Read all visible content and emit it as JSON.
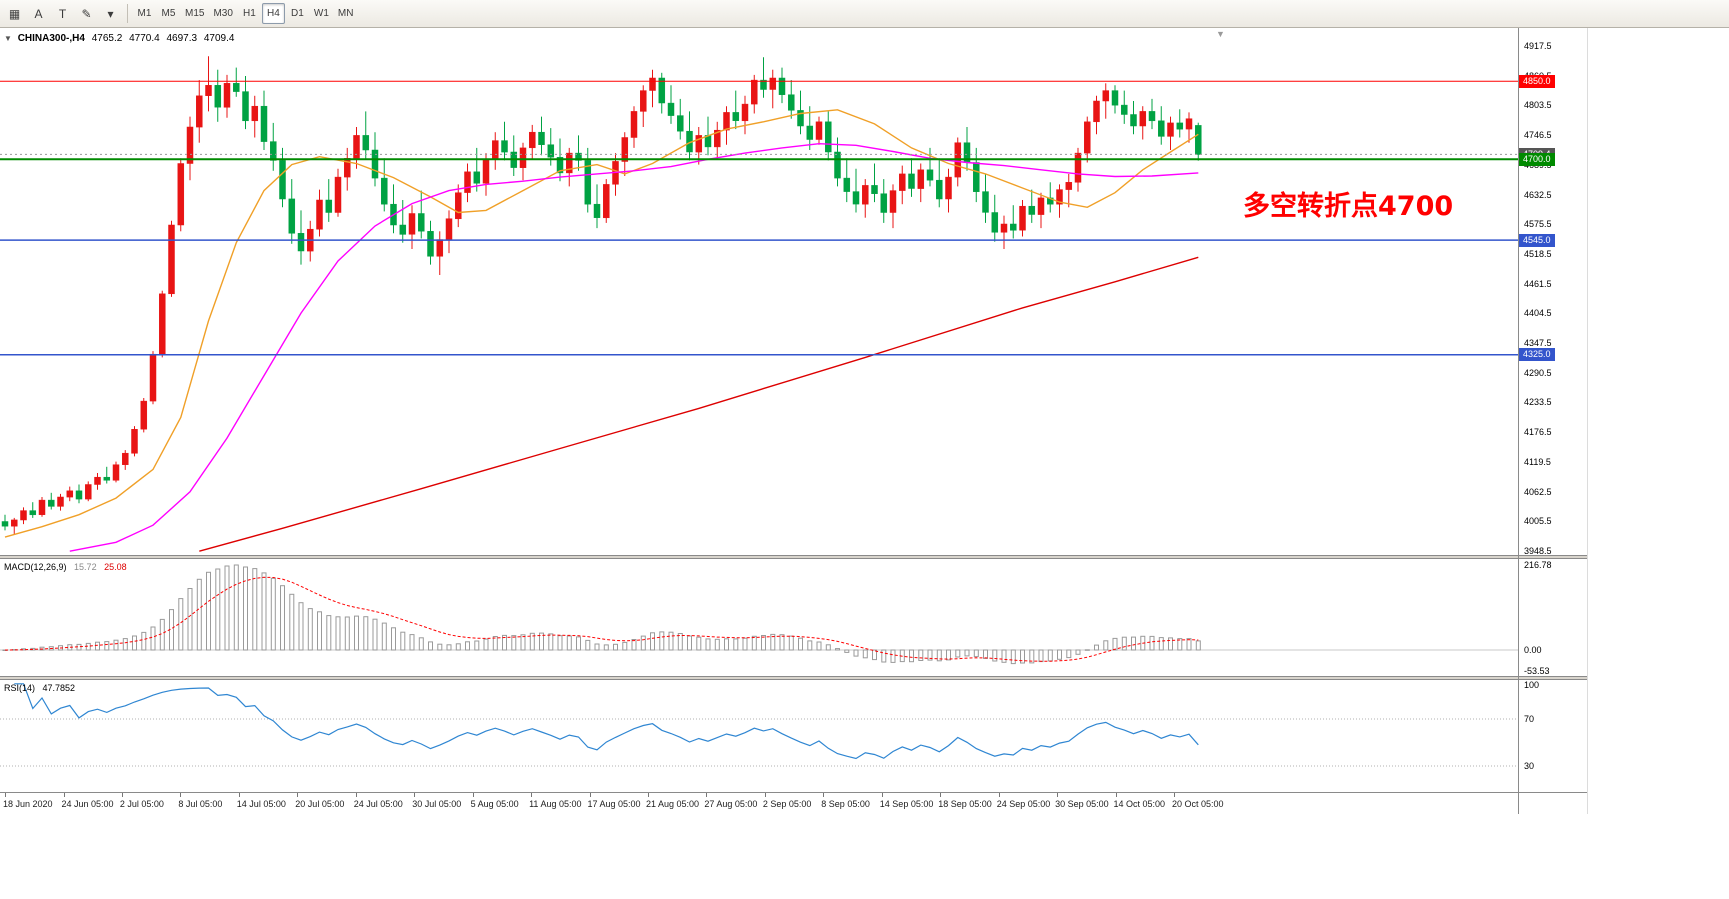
{
  "toolbar": {
    "icons": [
      {
        "name": "charts-grid-icon",
        "glyph": "▦"
      },
      {
        "name": "text-tool-icon",
        "glyph": "A"
      },
      {
        "name": "label-tool-icon",
        "glyph": "T"
      },
      {
        "name": "drawing-tools-icon",
        "glyph": "✎"
      },
      {
        "name": "chevron-down-icon",
        "glyph": "▾"
      }
    ],
    "timeframes": [
      "M1",
      "M5",
      "M15",
      "M30",
      "H1",
      "H4",
      "D1",
      "W1",
      "MN"
    ],
    "active_timeframe": "H4"
  },
  "chart": {
    "header": {
      "caret": "▼",
      "symbol_period": "CHINA300-,H4",
      "open": "4765.2",
      "high": "4770.4",
      "low": "4697.3",
      "close": "4709.4"
    },
    "annotation": {
      "text": "多空转折点4700",
      "color": "#ff0000"
    },
    "shift_marker_glyph": "▼",
    "levels": [
      {
        "price": 4850.0,
        "label": "4850.0",
        "color": "#ff0000",
        "width": 1
      },
      {
        "price": 4700.0,
        "label": "4700.0",
        "color": "#008a00",
        "width": 2
      },
      {
        "price": 4545.0,
        "label": "4545.0",
        "color": "#3355cc",
        "width": 1.5
      },
      {
        "price": 4325.0,
        "label": "4325.0",
        "color": "#3355cc",
        "width": 1.5
      }
    ],
    "current_price": {
      "value": 4709.4,
      "label": "4709.4",
      "tag_color": "#555555"
    },
    "y_axis": {
      "labels": [
        "4917.5",
        "4860.5",
        "4803.5",
        "4746.5",
        "4689.5",
        "4632.5",
        "4575.5",
        "4518.5",
        "4461.5",
        "4404.5",
        "4347.5",
        "4290.5",
        "4233.5",
        "4176.5",
        "4119.5",
        "4062.5",
        "4005.5",
        "3948.5"
      ]
    },
    "x_axis": {
      "labels": [
        "18 Jun 2020",
        "24 Jun 05:00",
        "2 Jul 05:00",
        "8 Jul 05:00",
        "14 Jul 05:00",
        "20 Jul 05:00",
        "24 Jul 05:00",
        "30 Jul 05:00",
        "5 Aug 05:00",
        "11 Aug 05:00",
        "17 Aug 05:00",
        "21 Aug 05:00",
        "27 Aug 05:00",
        "2 Sep 05:00",
        "8 Sep 05:00",
        "14 Sep 05:00",
        "18 Sep 05:00",
        "24 Sep 05:00",
        "30 Sep 05:00",
        "14 Oct 05:00",
        "20 Oct 05:00"
      ]
    }
  },
  "indicators": {
    "macd": {
      "name_label": "MACD(12,26,9)",
      "value": "15.72",
      "signal": "25.08",
      "axis_labels": [
        "216.78",
        "0.00",
        "-53.53"
      ]
    },
    "rsi": {
      "name_label": "RSI(14)",
      "value": "47.7852",
      "axis_labels": [
        "100",
        "70",
        "30"
      ],
      "levels": [
        70,
        30
      ]
    }
  },
  "colors": {
    "bull": "#e81414",
    "bear": "#00a243",
    "macd_hist": "#9a9a9a",
    "macd_signal": "#ff0000",
    "rsi_line": "#2f86d2",
    "level_dash": "#b0b0b0"
  },
  "chart_data": {
    "type": "candlestick",
    "symbol": "CHINA300-",
    "timeframe": "H4",
    "title": "CHINA300- H4 candlestick chart with MACD(12,26,9) and RSI(14)",
    "ylim": [
      3948.5,
      4917.5
    ],
    "last_ohlc": {
      "open": 4765.2,
      "high": 4770.4,
      "low": 4697.3,
      "close": 4709.4
    },
    "horizontal_levels": [
      4850.0,
      4700.0,
      4545.0,
      4325.0
    ],
    "candles": [
      [
        4005,
        4018,
        3988,
        3996
      ],
      [
        3996,
        4012,
        3980,
        4008
      ],
      [
        4008,
        4032,
        4000,
        4026
      ],
      [
        4026,
        4042,
        4012,
        4018
      ],
      [
        4018,
        4052,
        4014,
        4046
      ],
      [
        4046,
        4060,
        4028,
        4034
      ],
      [
        4034,
        4058,
        4026,
        4052
      ],
      [
        4052,
        4072,
        4044,
        4064
      ],
      [
        4064,
        4076,
        4040,
        4048
      ],
      [
        4048,
        4082,
        4044,
        4076
      ],
      [
        4076,
        4098,
        4066,
        4090
      ],
      [
        4090,
        4110,
        4078,
        4084
      ],
      [
        4084,
        4120,
        4080,
        4114
      ],
      [
        4114,
        4142,
        4104,
        4136
      ],
      [
        4136,
        4188,
        4130,
        4182
      ],
      [
        4182,
        4242,
        4176,
        4236
      ],
      [
        4236,
        4332,
        4230,
        4326
      ],
      [
        4326,
        4448,
        4320,
        4442
      ],
      [
        4442,
        4582,
        4436,
        4574
      ],
      [
        4574,
        4702,
        4562,
        4692
      ],
      [
        4692,
        4782,
        4660,
        4762
      ],
      [
        4762,
        4852,
        4732,
        4822
      ],
      [
        4822,
        4898,
        4792,
        4842
      ],
      [
        4842,
        4872,
        4772,
        4800
      ],
      [
        4800,
        4862,
        4780,
        4846
      ],
      [
        4846,
        4876,
        4820,
        4830
      ],
      [
        4830,
        4860,
        4758,
        4774
      ],
      [
        4774,
        4822,
        4742,
        4802
      ],
      [
        4802,
        4832,
        4718,
        4734
      ],
      [
        4734,
        4770,
        4678,
        4698
      ],
      [
        4698,
        4722,
        4608,
        4624
      ],
      [
        4624,
        4662,
        4538,
        4558
      ],
      [
        4558,
        4602,
        4498,
        4524
      ],
      [
        4524,
        4582,
        4504,
        4566
      ],
      [
        4566,
        4642,
        4552,
        4622
      ],
      [
        4622,
        4662,
        4580,
        4598
      ],
      [
        4598,
        4682,
        4590,
        4666
      ],
      [
        4666,
        4722,
        4640,
        4702
      ],
      [
        4702,
        4762,
        4682,
        4746
      ],
      [
        4746,
        4792,
        4700,
        4718
      ],
      [
        4718,
        4752,
        4648,
        4664
      ],
      [
        4664,
        4702,
        4600,
        4614
      ],
      [
        4614,
        4652,
        4558,
        4574
      ],
      [
        4574,
        4622,
        4540,
        4556
      ],
      [
        4556,
        4612,
        4528,
        4596
      ],
      [
        4596,
        4640,
        4548,
        4562
      ],
      [
        4562,
        4582,
        4498,
        4514
      ],
      [
        4514,
        4562,
        4478,
        4546
      ],
      [
        4546,
        4602,
        4520,
        4586
      ],
      [
        4586,
        4652,
        4570,
        4636
      ],
      [
        4636,
        4692,
        4618,
        4676
      ],
      [
        4676,
        4722,
        4638,
        4654
      ],
      [
        4654,
        4712,
        4630,
        4700
      ],
      [
        4700,
        4752,
        4680,
        4736
      ],
      [
        4736,
        4772,
        4698,
        4714
      ],
      [
        4714,
        4746,
        4668,
        4684
      ],
      [
        4684,
        4732,
        4660,
        4722
      ],
      [
        4722,
        4766,
        4700,
        4752
      ],
      [
        4752,
        4782,
        4708,
        4728
      ],
      [
        4728,
        4760,
        4688,
        4704
      ],
      [
        4704,
        4740,
        4658,
        4674
      ],
      [
        4674,
        4722,
        4648,
        4712
      ],
      [
        4712,
        4746,
        4678,
        4698
      ],
      [
        4698,
        4722,
        4598,
        4614
      ],
      [
        4614,
        4652,
        4568,
        4588
      ],
      [
        4588,
        4662,
        4578,
        4652
      ],
      [
        4652,
        4712,
        4630,
        4696
      ],
      [
        4696,
        4752,
        4668,
        4742
      ],
      [
        4742,
        4802,
        4722,
        4792
      ],
      [
        4792,
        4842,
        4762,
        4832
      ],
      [
        4832,
        4872,
        4800,
        4856
      ],
      [
        4856,
        4866,
        4788,
        4808
      ],
      [
        4808,
        4842,
        4768,
        4784
      ],
      [
        4784,
        4816,
        4738,
        4754
      ],
      [
        4754,
        4792,
        4698,
        4714
      ],
      [
        4714,
        4762,
        4690,
        4746
      ],
      [
        4746,
        4782,
        4708,
        4724
      ],
      [
        4724,
        4772,
        4700,
        4756
      ],
      [
        4756,
        4802,
        4728,
        4790
      ],
      [
        4790,
        4832,
        4758,
        4774
      ],
      [
        4774,
        4822,
        4748,
        4806
      ],
      [
        4806,
        4862,
        4788,
        4852
      ],
      [
        4852,
        4896,
        4818,
        4834
      ],
      [
        4834,
        4872,
        4798,
        4856
      ],
      [
        4856,
        4876,
        4808,
        4824
      ],
      [
        4824,
        4852,
        4778,
        4794
      ],
      [
        4794,
        4832,
        4748,
        4764
      ],
      [
        4764,
        4802,
        4718,
        4738
      ],
      [
        4738,
        4782,
        4728,
        4772
      ],
      [
        4772,
        4792,
        4698,
        4714
      ],
      [
        4714,
        4742,
        4648,
        4664
      ],
      [
        4664,
        4702,
        4618,
        4638
      ],
      [
        4638,
        4682,
        4598,
        4614
      ],
      [
        4614,
        4662,
        4588,
        4650
      ],
      [
        4650,
        4692,
        4618,
        4634
      ],
      [
        4634,
        4662,
        4578,
        4598
      ],
      [
        4598,
        4652,
        4568,
        4640
      ],
      [
        4640,
        4688,
        4614,
        4672
      ],
      [
        4672,
        4702,
        4628,
        4644
      ],
      [
        4644,
        4692,
        4618,
        4680
      ],
      [
        4680,
        4722,
        4648,
        4660
      ],
      [
        4660,
        4702,
        4608,
        4624
      ],
      [
        4624,
        4682,
        4598,
        4666
      ],
      [
        4666,
        4742,
        4648,
        4732
      ],
      [
        4732,
        4762,
        4678,
        4694
      ],
      [
        4694,
        4722,
        4618,
        4638
      ],
      [
        4638,
        4672,
        4578,
        4598
      ],
      [
        4598,
        4632,
        4542,
        4560
      ],
      [
        4560,
        4592,
        4528,
        4576
      ],
      [
        4576,
        4612,
        4548,
        4564
      ],
      [
        4564,
        4622,
        4552,
        4610
      ],
      [
        4610,
        4642,
        4578,
        4594
      ],
      [
        4594,
        4636,
        4568,
        4626
      ],
      [
        4626,
        4656,
        4598,
        4614
      ],
      [
        4614,
        4652,
        4588,
        4642
      ],
      [
        4642,
        4672,
        4608,
        4656
      ],
      [
        4656,
        4722,
        4638,
        4712
      ],
      [
        4712,
        4782,
        4694,
        4772
      ],
      [
        4772,
        4822,
        4748,
        4812
      ],
      [
        4812,
        4846,
        4778,
        4832
      ],
      [
        4832,
        4842,
        4788,
        4804
      ],
      [
        4804,
        4832,
        4768,
        4786
      ],
      [
        4786,
        4812,
        4748,
        4764
      ],
      [
        4764,
        4802,
        4738,
        4792
      ],
      [
        4792,
        4816,
        4758,
        4774
      ],
      [
        4774,
        4802,
        4728,
        4744
      ],
      [
        4744,
        4782,
        4718,
        4770
      ],
      [
        4770,
        4796,
        4742,
        4758
      ],
      [
        4758,
        4790,
        4732,
        4778
      ],
      [
        4765.2,
        4770.4,
        4697.3,
        4709.4
      ]
    ],
    "moving_averages": [
      {
        "name": "ma-fast",
        "color": "#f0a028",
        "points": [
          [
            0,
            3975
          ],
          [
            4,
            3995
          ],
          [
            8,
            4018
          ],
          [
            12,
            4050
          ],
          [
            16,
            4105
          ],
          [
            19,
            4205
          ],
          [
            22,
            4390
          ],
          [
            25,
            4540
          ],
          [
            28,
            4640
          ],
          [
            31,
            4690
          ],
          [
            34,
            4705
          ],
          [
            38,
            4692
          ],
          [
            42,
            4665
          ],
          [
            46,
            4628
          ],
          [
            49,
            4598
          ],
          [
            52,
            4602
          ],
          [
            56,
            4640
          ],
          [
            60,
            4678
          ],
          [
            64,
            4690
          ],
          [
            67,
            4672
          ],
          [
            70,
            4692
          ],
          [
            74,
            4732
          ],
          [
            78,
            4758
          ],
          [
            82,
            4772
          ],
          [
            86,
            4788
          ],
          [
            90,
            4795
          ],
          [
            94,
            4768
          ],
          [
            98,
            4722
          ],
          [
            102,
            4692
          ],
          [
            106,
            4672
          ],
          [
            110,
            4645
          ],
          [
            114,
            4618
          ],
          [
            117,
            4608
          ],
          [
            120,
            4636
          ],
          [
            123,
            4680
          ],
          [
            126,
            4714
          ],
          [
            129,
            4748
          ]
        ]
      },
      {
        "name": "ma-medium",
        "color": "#ff00ff",
        "points": [
          [
            7,
            3948
          ],
          [
            12,
            3965
          ],
          [
            16,
            3998
          ],
          [
            20,
            4062
          ],
          [
            24,
            4165
          ],
          [
            28,
            4285
          ],
          [
            32,
            4405
          ],
          [
            36,
            4505
          ],
          [
            40,
            4572
          ],
          [
            44,
            4615
          ],
          [
            48,
            4640
          ],
          [
            52,
            4652
          ],
          [
            56,
            4658
          ],
          [
            60,
            4666
          ],
          [
            64,
            4672
          ],
          [
            68,
            4678
          ],
          [
            72,
            4686
          ],
          [
            76,
            4700
          ],
          [
            80,
            4712
          ],
          [
            84,
            4722
          ],
          [
            88,
            4730
          ],
          [
            92,
            4727
          ],
          [
            96,
            4715
          ],
          [
            100,
            4702
          ],
          [
            104,
            4694
          ],
          [
            108,
            4688
          ],
          [
            112,
            4680
          ],
          [
            116,
            4672
          ],
          [
            120,
            4667
          ],
          [
            124,
            4668
          ],
          [
            129,
            4674
          ]
        ]
      },
      {
        "name": "ma-slow",
        "color": "#dd0000",
        "points": [
          [
            21,
            3948
          ],
          [
            30,
            3992
          ],
          [
            45,
            4068
          ],
          [
            60,
            4145
          ],
          [
            75,
            4222
          ],
          [
            93,
            4320
          ],
          [
            110,
            4415
          ],
          [
            120,
            4465
          ],
          [
            129,
            4512
          ]
        ]
      }
    ]
  }
}
